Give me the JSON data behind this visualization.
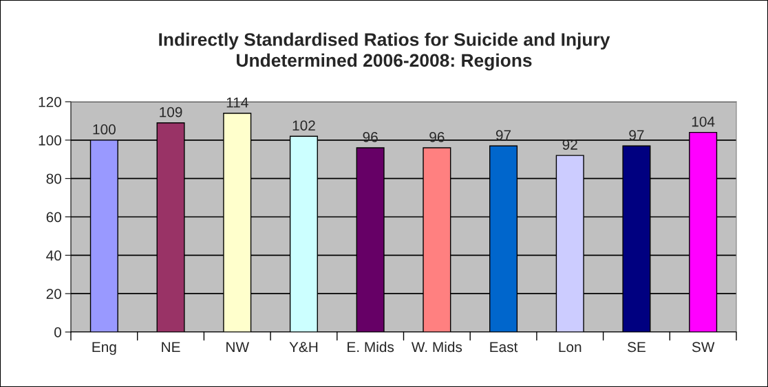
{
  "chart_data": {
    "type": "bar",
    "title": "Indirectly Standardised Ratios for Suicide and Injury\nUndetermined 2006-2008: Regions",
    "categories": [
      "Eng",
      "NE",
      "NW",
      "Y&H",
      "E. Mids",
      "W. Mids",
      "East",
      "Lon",
      "SE",
      "SW"
    ],
    "values": [
      100,
      109,
      114,
      102,
      96,
      96,
      97,
      92,
      97,
      104
    ],
    "colors": [
      "#9999ff",
      "#993366",
      "#ffffcc",
      "#ccffff",
      "#660066",
      "#ff8080",
      "#0066cc",
      "#ccccff",
      "#000080",
      "#ff00ff"
    ],
    "ylim": [
      0,
      120
    ],
    "yticks": [
      0,
      20,
      40,
      60,
      80,
      100,
      120
    ],
    "grid": "y",
    "data_labels": true
  }
}
